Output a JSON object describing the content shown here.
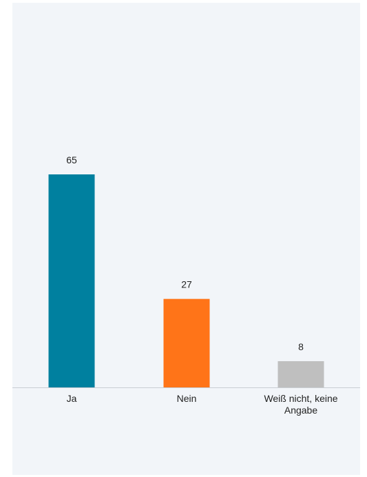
{
  "chart_data": {
    "type": "bar",
    "categories": [
      "Ja",
      "Nein",
      "Weiß nicht, keine Angabe"
    ],
    "category_lines": [
      [
        "Ja"
      ],
      [
        "Nein"
      ],
      [
        "Weiß nicht, keine",
        "Angabe"
      ]
    ],
    "values": [
      65,
      27,
      8
    ],
    "value_labels": [
      "65",
      "27",
      "8"
    ],
    "colors": [
      "#00809f",
      "#ff7418",
      "#bfbfbf"
    ],
    "title": "",
    "xlabel": "",
    "ylabel": "",
    "ylim": [
      0,
      65
    ],
    "grid": false,
    "legend": "none"
  }
}
